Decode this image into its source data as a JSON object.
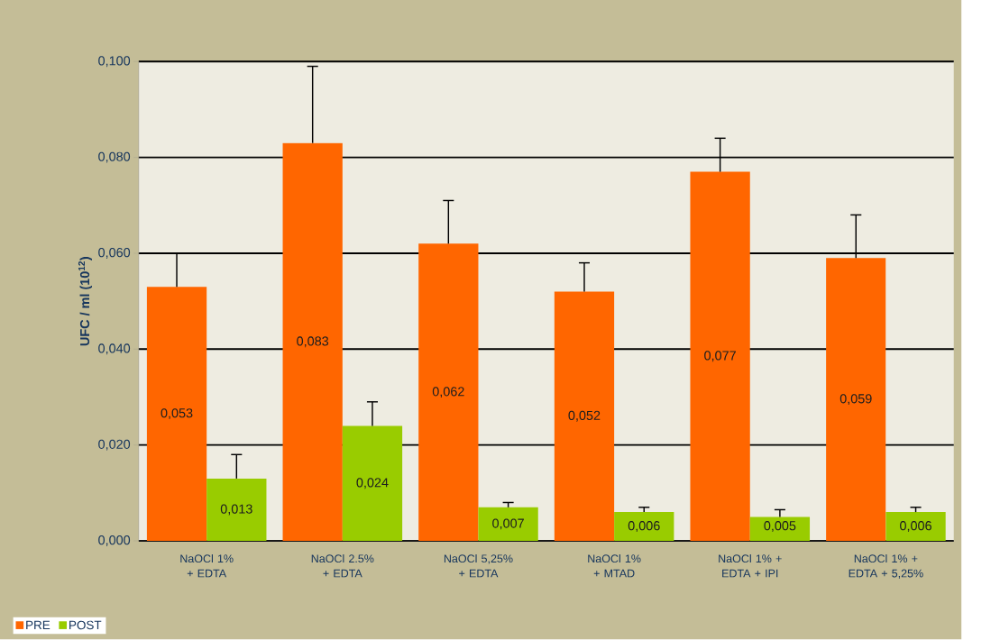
{
  "chart_data": {
    "type": "bar",
    "ylabel": "UFC / ml (10$^{12}$)",
    "categories": [
      "NaOCl 1% + EDTA",
      "NaOCl 2.5% + EDTA",
      "NaOCl 5,25% + EDTA",
      "NaOCl 1% + MTAD",
      "NaOCl 1% + EDTA + IPI",
      "NaOCl 1% + EDTA + 5,25%"
    ],
    "series": [
      {
        "name": "PRE",
        "color": "#ff6600",
        "values": [
          0.053,
          0.083,
          0.062,
          0.052,
          0.077,
          0.059
        ],
        "errors": [
          [
            0.053,
            0.06
          ],
          [
            0.083,
            0.099
          ],
          [
            0.062,
            0.071
          ],
          [
            0.052,
            0.058
          ],
          [
            0.077,
            0.084
          ],
          [
            0.059,
            0.068
          ]
        ],
        "value_labels": [
          "0,053",
          "0,083",
          "0,062",
          "0,052",
          "0,077",
          "0,059"
        ]
      },
      {
        "name": "POST",
        "color": "#99cc00",
        "values": [
          0.013,
          0.024,
          0.007,
          0.006,
          0.005,
          0.006
        ],
        "errors": [
          [
            0.013,
            0.018
          ],
          [
            0.024,
            0.029
          ],
          [
            0.007,
            0.008
          ],
          [
            0.006,
            0.007
          ],
          [
            0.005,
            0.0065
          ],
          [
            0.006,
            0.007
          ]
        ],
        "value_labels": [
          "0,013",
          "0,024",
          "0,007",
          "0,006",
          "0,005",
          "0,006"
        ]
      }
    ],
    "ylim": [
      0,
      0.1
    ],
    "yticks": [
      {
        "value": 0,
        "label": "0,000"
      },
      {
        "value": 0.02,
        "label": "0,020"
      },
      {
        "value": 0.04,
        "label": "0,040"
      },
      {
        "value": 0.06,
        "label": "0,060"
      },
      {
        "value": 0.08,
        "label": "0,080"
      },
      {
        "value": 0.1,
        "label": "0,100"
      }
    ],
    "grid": "y",
    "legend": "bottom left"
  }
}
